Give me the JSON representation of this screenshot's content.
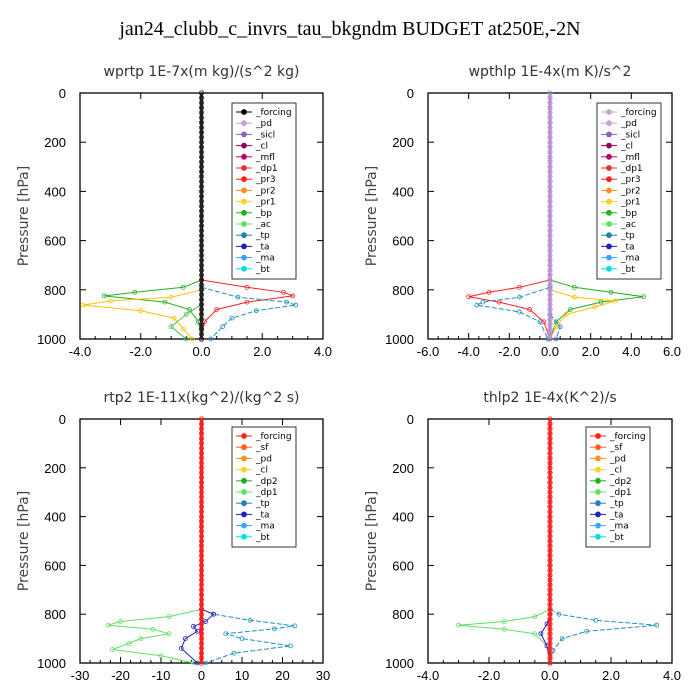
{
  "title": "jan24_clubb_c_invrs_tau_bkgndm  BUDGET at250E,-2N",
  "chart_data": [
    {
      "type": "line",
      "title": "wprtp   1E-7x(m kg)/(s^2 kg)",
      "ylabel": "Pressure [hPa]",
      "xlim": [
        -4.0,
        4.0
      ],
      "ylim": [
        1000,
        0
      ],
      "xticks": [
        "-4.0",
        "-2.0",
        "0.0",
        "2.0",
        "4.0"
      ],
      "yticks": [
        "0",
        "200",
        "400",
        "600",
        "800",
        "1000"
      ],
      "legend": [
        "_forcing",
        "_pd",
        "_sicl",
        "_cl",
        "_mfl",
        "_dp1",
        "_pr3",
        "_pr2",
        "_pr1",
        "_bp",
        "_ac",
        "_tp",
        "_ta",
        "_ma",
        "_bt"
      ],
      "legend_colors": [
        "#000000",
        "#c8a0d8",
        "#9060c0",
        "#900060",
        "#c00060",
        "#e03030",
        "#ff2020",
        "#ff9020",
        "#ffd020",
        "#20b020",
        "#60e060",
        "#2080c0",
        "#2020c0",
        "#40a0ff",
        "#00e0e0"
      ],
      "series": [
        {
          "name": "_bp",
          "points": [
            [
              0,
              760
            ],
            [
              -0.6,
              790
            ],
            [
              -2.2,
              810
            ],
            [
              -3.2,
              825
            ],
            [
              -1.2,
              850
            ],
            [
              -0.4,
              880
            ],
            [
              -0.1,
              930
            ],
            [
              0,
              1000
            ]
          ]
        },
        {
          "name": "_pr1",
          "points": [
            [
              0,
              800
            ],
            [
              -1.0,
              830
            ],
            [
              -3.0,
              845
            ],
            [
              -3.9,
              862
            ],
            [
              -2.0,
              885
            ],
            [
              -0.9,
              915
            ],
            [
              -0.6,
              960
            ],
            [
              -0.3,
              1000
            ]
          ]
        },
        {
          "name": "_pr3",
          "points": [
            [
              0,
              760
            ],
            [
              1.5,
              790
            ],
            [
              2.7,
              810
            ],
            [
              3.0,
              825
            ],
            [
              1.5,
              850
            ],
            [
              0.5,
              880
            ],
            [
              0.1,
              930
            ],
            [
              0,
              1000
            ]
          ]
        },
        {
          "name": "_tp",
          "points": [
            [
              0,
              790
            ],
            [
              1.2,
              830
            ],
            [
              2.8,
              850
            ],
            [
              3.1,
              862
            ],
            [
              1.8,
              885
            ],
            [
              1.0,
              915
            ],
            [
              0.7,
              950
            ],
            [
              0.3,
              1000
            ]
          ]
        },
        {
          "name": "_ac",
          "points": [
            [
              0,
              860
            ],
            [
              -0.5,
              900
            ],
            [
              -1.0,
              950
            ],
            [
              -0.5,
              1000
            ]
          ]
        },
        {
          "name": "_forcing",
          "points": [
            [
              0,
              0
            ],
            [
              0,
              1000
            ]
          ]
        }
      ]
    },
    {
      "type": "line",
      "title": "wpthlp   1E-4x(m K)/s^2",
      "ylabel": "Pressure [hPa]",
      "xlim": [
        -6.0,
        6.0
      ],
      "ylim": [
        1000,
        0
      ],
      "xticks": [
        "-6.0",
        "-4.0",
        "-2.0",
        "0.0",
        "2.0",
        "4.0",
        "6.0"
      ],
      "yticks": [
        "0",
        "200",
        "400",
        "600",
        "800",
        "1000"
      ],
      "legend": [
        "_forcing",
        "_pd",
        "_sicl",
        "_cl",
        "_mfl",
        "_dp1",
        "_pr3",
        "_pr2",
        "_pr1",
        "_bp",
        "_ac",
        "_tp",
        "_ta",
        "_ma",
        "_bt"
      ],
      "legend_colors": [
        "#c8a0d8",
        "#c8a0d8",
        "#9060c0",
        "#900060",
        "#c00060",
        "#e03030",
        "#ff2020",
        "#ff9020",
        "#ffd020",
        "#20b020",
        "#60e060",
        "#2080c0",
        "#2020c0",
        "#40a0ff",
        "#00e0e0"
      ],
      "series": [
        {
          "name": "_bp",
          "points": [
            [
              0,
              760
            ],
            [
              1.2,
              790
            ],
            [
              3.0,
              810
            ],
            [
              4.6,
              828
            ],
            [
              2.5,
              850
            ],
            [
              1.0,
              880
            ],
            [
              0.3,
              930
            ],
            [
              0,
              1000
            ]
          ]
        },
        {
          "name": "_pr1",
          "points": [
            [
              0,
              800
            ],
            [
              1.2,
              830
            ],
            [
              3.2,
              845
            ],
            [
              2.2,
              870
            ],
            [
              0.8,
              900
            ],
            [
              0.3,
              950
            ],
            [
              0,
              1000
            ]
          ]
        },
        {
          "name": "_pr3",
          "points": [
            [
              0,
              760
            ],
            [
              -1.5,
              790
            ],
            [
              -3.0,
              810
            ],
            [
              -4.0,
              828
            ],
            [
              -2.5,
              850
            ],
            [
              -1.0,
              880
            ],
            [
              -0.3,
              930
            ],
            [
              0,
              1000
            ]
          ]
        },
        {
          "name": "_tp",
          "points": [
            [
              0,
              790
            ],
            [
              -1.5,
              830
            ],
            [
              -3.3,
              850
            ],
            [
              -3.6,
              862
            ],
            [
              -1.5,
              890
            ],
            [
              -0.5,
              930
            ],
            [
              -0.1,
              1000
            ]
          ]
        },
        {
          "name": "_ma",
          "points": [
            [
              0,
              900
            ],
            [
              0.5,
              950
            ],
            [
              0.3,
              1000
            ]
          ]
        },
        {
          "name": "_forcing",
          "points": [
            [
              0,
              0
            ],
            [
              0,
              1000
            ]
          ]
        }
      ]
    },
    {
      "type": "line",
      "title": "rtp2   1E-11x(kg^2)/(kg^2 s)",
      "ylabel": "Pressure [hPa]",
      "xlim": [
        -30,
        30
      ],
      "ylim": [
        1000,
        0
      ],
      "xticks": [
        "-30",
        "-20",
        "-10",
        "0",
        "10",
        "20",
        "30"
      ],
      "yticks": [
        "0",
        "200",
        "400",
        "600",
        "800",
        "1000"
      ],
      "legend": [
        "_forcing",
        "_sf",
        "_pd",
        "_cl",
        "_dp2",
        "_dp1",
        "_tp",
        "_ta",
        "_ma",
        "_bt"
      ],
      "legend_colors": [
        "#ff2020",
        "#ff6020",
        "#ff9020",
        "#ffd020",
        "#20b020",
        "#60e060",
        "#2080c0",
        "#2020c0",
        "#40a0ff",
        "#00e0e0"
      ],
      "series": [
        {
          "name": "_dp1",
          "points": [
            [
              0,
              780
            ],
            [
              -8,
              810
            ],
            [
              -20,
              830
            ],
            [
              -23,
              845
            ],
            [
              -12,
              862
            ],
            [
              -8,
              880
            ],
            [
              -15,
              900
            ],
            [
              -18,
              920
            ],
            [
              -22,
              945
            ],
            [
              -10,
              970
            ],
            [
              -2,
              1000
            ]
          ]
        },
        {
          "name": "_tp",
          "points": [
            [
              0,
              780
            ],
            [
              3,
              800
            ],
            [
              12,
              825
            ],
            [
              23,
              848
            ],
            [
              18,
              860
            ],
            [
              6,
              880
            ],
            [
              10,
              900
            ],
            [
              22,
              930
            ],
            [
              8,
              960
            ],
            [
              1,
              1000
            ]
          ]
        },
        {
          "name": "_ta",
          "points": [
            [
              0,
              780
            ],
            [
              3,
              800
            ],
            [
              1,
              830
            ],
            [
              -2,
              850
            ],
            [
              -1,
              870
            ],
            [
              -4,
              900
            ],
            [
              -5,
              940
            ],
            [
              -1,
              1000
            ]
          ]
        },
        {
          "name": "_forcing",
          "points": [
            [
              0,
              0
            ],
            [
              0,
              1000
            ]
          ]
        }
      ]
    },
    {
      "type": "line",
      "title": "thlp2   1E-4x(K^2)/s",
      "ylabel": "Pressure [hPa]",
      "xlim": [
        -4.0,
        4.0
      ],
      "ylim": [
        1000,
        0
      ],
      "xticks": [
        "-4.0",
        "-2.0",
        "0.0",
        "2.0",
        "4.0"
      ],
      "yticks": [
        "0",
        "200",
        "400",
        "600",
        "800",
        "1000"
      ],
      "legend": [
        "_forcing",
        "_sf",
        "_pd",
        "_cl",
        "_dp2",
        "_dp1",
        "_tp",
        "_ta",
        "_ma",
        "_bt"
      ],
      "legend_colors": [
        "#ff2020",
        "#ff6020",
        "#ff9020",
        "#ffd020",
        "#20b020",
        "#60e060",
        "#2080c0",
        "#2020c0",
        "#40a0ff",
        "#00e0e0"
      ],
      "series": [
        {
          "name": "_dp1",
          "points": [
            [
              0,
              780
            ],
            [
              -0.5,
              810
            ],
            [
              -1.5,
              830
            ],
            [
              -3.0,
              845
            ],
            [
              -1.5,
              862
            ],
            [
              -0.5,
              880
            ],
            [
              -0.1,
              930
            ],
            [
              0,
              1000
            ]
          ]
        },
        {
          "name": "_tp",
          "points": [
            [
              0,
              780
            ],
            [
              0.3,
              800
            ],
            [
              1.5,
              825
            ],
            [
              3.5,
              845
            ],
            [
              1.2,
              870
            ],
            [
              0.4,
              900
            ],
            [
              0.1,
              950
            ],
            [
              0,
              1000
            ]
          ]
        },
        {
          "name": "_ta",
          "points": [
            [
              0,
              800
            ],
            [
              -0.1,
              840
            ],
            [
              -0.3,
              880
            ],
            [
              -0.1,
              930
            ],
            [
              0,
              1000
            ]
          ]
        },
        {
          "name": "_forcing",
          "points": [
            [
              0,
              0
            ],
            [
              0,
              1000
            ]
          ]
        }
      ]
    }
  ]
}
